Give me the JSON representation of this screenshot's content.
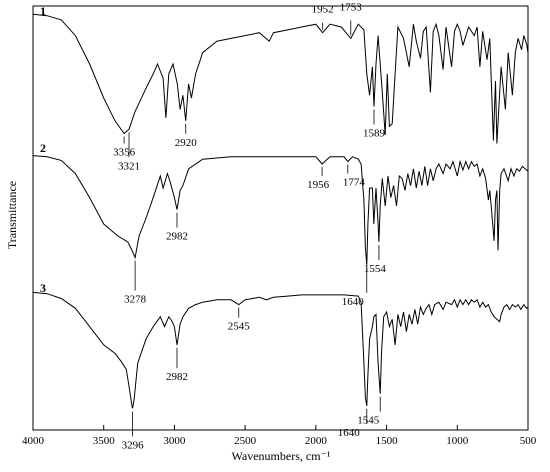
{
  "chart_data": {
    "type": "line",
    "xlabel": "Wavenumbers, cm⁻¹",
    "ylabel": "Transmittance",
    "xlim": [
      4000,
      500
    ],
    "x_reversed": true,
    "x_ticks": [
      4000,
      3500,
      3000,
      2500,
      2000,
      1500,
      1000,
      500
    ],
    "grid": false,
    "legend": "none",
    "line_color": "#000000",
    "series": [
      {
        "name": "1",
        "annotations": [
          3356,
          3321,
          2920,
          1952,
          1753,
          1589
        ],
        "points": [
          [
            4000,
            0.97
          ],
          [
            3900,
            0.96
          ],
          [
            3800,
            0.93
          ],
          [
            3700,
            0.82
          ],
          [
            3600,
            0.62
          ],
          [
            3500,
            0.38
          ],
          [
            3420,
            0.22
          ],
          [
            3356,
            0.13
          ],
          [
            3321,
            0.16
          ],
          [
            3280,
            0.28
          ],
          [
            3200,
            0.45
          ],
          [
            3150,
            0.55
          ],
          [
            3120,
            0.62
          ],
          [
            3080,
            0.52
          ],
          [
            3060,
            0.24
          ],
          [
            3040,
            0.55
          ],
          [
            3010,
            0.62
          ],
          [
            2980,
            0.48
          ],
          [
            2960,
            0.3
          ],
          [
            2940,
            0.4
          ],
          [
            2920,
            0.22
          ],
          [
            2900,
            0.48
          ],
          [
            2880,
            0.38
          ],
          [
            2850,
            0.55
          ],
          [
            2800,
            0.7
          ],
          [
            2700,
            0.78
          ],
          [
            2600,
            0.8
          ],
          [
            2500,
            0.82
          ],
          [
            2400,
            0.84
          ],
          [
            2330,
            0.78
          ],
          [
            2300,
            0.84
          ],
          [
            2200,
            0.86
          ],
          [
            2100,
            0.88
          ],
          [
            2000,
            0.9
          ],
          [
            1952,
            0.84
          ],
          [
            1900,
            0.9
          ],
          [
            1820,
            0.88
          ],
          [
            1753,
            0.8
          ],
          [
            1700,
            0.9
          ],
          [
            1660,
            0.86
          ],
          [
            1640,
            0.55
          ],
          [
            1620,
            0.4
          ],
          [
            1600,
            0.6
          ],
          [
            1589,
            0.32
          ],
          [
            1575,
            0.62
          ],
          [
            1560,
            0.82
          ],
          [
            1530,
            0.42
          ],
          [
            1510,
            0.12
          ],
          [
            1495,
            0.55
          ],
          [
            1480,
            0.18
          ],
          [
            1460,
            0.2
          ],
          [
            1440,
            0.55
          ],
          [
            1420,
            0.88
          ],
          [
            1380,
            0.8
          ],
          [
            1340,
            0.6
          ],
          [
            1310,
            0.9
          ],
          [
            1290,
            0.78
          ],
          [
            1260,
            0.66
          ],
          [
            1240,
            0.85
          ],
          [
            1220,
            0.88
          ],
          [
            1190,
            0.42
          ],
          [
            1170,
            0.85
          ],
          [
            1150,
            0.9
          ],
          [
            1130,
            0.82
          ],
          [
            1100,
            0.58
          ],
          [
            1080,
            0.88
          ],
          [
            1040,
            0.6
          ],
          [
            1020,
            0.85
          ],
          [
            1000,
            0.9
          ],
          [
            980,
            0.85
          ],
          [
            960,
            0.75
          ],
          [
            920,
            0.88
          ],
          [
            880,
            0.82
          ],
          [
            860,
            0.88
          ],
          [
            840,
            0.6
          ],
          [
            820,
            0.85
          ],
          [
            790,
            0.65
          ],
          [
            770,
            0.8
          ],
          [
            745,
            0.08
          ],
          [
            730,
            0.5
          ],
          [
            720,
            0.06
          ],
          [
            700,
            0.42
          ],
          [
            690,
            0.6
          ],
          [
            660,
            0.3
          ],
          [
            640,
            0.7
          ],
          [
            610,
            0.4
          ],
          [
            590,
            0.7
          ],
          [
            570,
            0.8
          ],
          [
            545,
            0.72
          ],
          [
            530,
            0.82
          ],
          [
            510,
            0.76
          ],
          [
            500,
            0.7
          ]
        ]
      },
      {
        "name": "2",
        "annotations": [
          3278,
          2982,
          1956,
          1774,
          1640,
          1554
        ],
        "points": [
          [
            4000,
            0.97
          ],
          [
            3900,
            0.96
          ],
          [
            3800,
            0.93
          ],
          [
            3700,
            0.82
          ],
          [
            3600,
            0.62
          ],
          [
            3500,
            0.4
          ],
          [
            3400,
            0.3
          ],
          [
            3330,
            0.25
          ],
          [
            3300,
            0.18
          ],
          [
            3278,
            0.12
          ],
          [
            3250,
            0.3
          ],
          [
            3200,
            0.45
          ],
          [
            3150,
            0.62
          ],
          [
            3100,
            0.8
          ],
          [
            3080,
            0.7
          ],
          [
            3050,
            0.82
          ],
          [
            3030,
            0.75
          ],
          [
            3000,
            0.62
          ],
          [
            2982,
            0.52
          ],
          [
            2960,
            0.68
          ],
          [
            2940,
            0.72
          ],
          [
            2900,
            0.86
          ],
          [
            2800,
            0.94
          ],
          [
            2600,
            0.96
          ],
          [
            2400,
            0.96
          ],
          [
            2200,
            0.96
          ],
          [
            2000,
            0.96
          ],
          [
            1956,
            0.9
          ],
          [
            1900,
            0.96
          ],
          [
            1800,
            0.96
          ],
          [
            1774,
            0.92
          ],
          [
            1740,
            0.96
          ],
          [
            1700,
            0.94
          ],
          [
            1680,
            0.9
          ],
          [
            1660,
            0.6
          ],
          [
            1650,
            0.2
          ],
          [
            1640,
            0.06
          ],
          [
            1632,
            0.4
          ],
          [
            1620,
            0.7
          ],
          [
            1600,
            0.7
          ],
          [
            1590,
            0.4
          ],
          [
            1575,
            0.7
          ],
          [
            1560,
            0.4
          ],
          [
            1554,
            0.25
          ],
          [
            1545,
            0.55
          ],
          [
            1530,
            0.78
          ],
          [
            1510,
            0.55
          ],
          [
            1490,
            0.8
          ],
          [
            1470,
            0.62
          ],
          [
            1450,
            0.72
          ],
          [
            1430,
            0.55
          ],
          [
            1410,
            0.8
          ],
          [
            1390,
            0.78
          ],
          [
            1370,
            0.68
          ],
          [
            1350,
            0.82
          ],
          [
            1330,
            0.72
          ],
          [
            1310,
            0.86
          ],
          [
            1290,
            0.7
          ],
          [
            1270,
            0.84
          ],
          [
            1250,
            0.72
          ],
          [
            1230,
            0.88
          ],
          [
            1210,
            0.72
          ],
          [
            1190,
            0.86
          ],
          [
            1170,
            0.76
          ],
          [
            1150,
            0.86
          ],
          [
            1130,
            0.9
          ],
          [
            1100,
            0.82
          ],
          [
            1080,
            0.9
          ],
          [
            1050,
            0.86
          ],
          [
            1030,
            0.92
          ],
          [
            1000,
            0.8
          ],
          [
            980,
            0.92
          ],
          [
            960,
            0.85
          ],
          [
            940,
            0.92
          ],
          [
            920,
            0.86
          ],
          [
            900,
            0.92
          ],
          [
            880,
            0.88
          ],
          [
            860,
            0.9
          ],
          [
            840,
            0.8
          ],
          [
            820,
            0.86
          ],
          [
            800,
            0.78
          ],
          [
            780,
            0.6
          ],
          [
            770,
            0.68
          ],
          [
            760,
            0.55
          ],
          [
            740,
            0.26
          ],
          [
            730,
            0.6
          ],
          [
            720,
            0.68
          ],
          [
            712,
            0.18
          ],
          [
            700,
            0.68
          ],
          [
            690,
            0.82
          ],
          [
            670,
            0.86
          ],
          [
            640,
            0.76
          ],
          [
            620,
            0.86
          ],
          [
            600,
            0.8
          ],
          [
            580,
            0.86
          ],
          [
            560,
            0.84
          ],
          [
            540,
            0.88
          ],
          [
            520,
            0.86
          ],
          [
            500,
            0.84
          ]
        ]
      },
      {
        "name": "3",
        "annotations": [
          3296,
          2982,
          2545,
          1640,
          1545
        ],
        "points": [
          [
            4000,
            0.98
          ],
          [
            3900,
            0.97
          ],
          [
            3800,
            0.93
          ],
          [
            3700,
            0.85
          ],
          [
            3600,
            0.7
          ],
          [
            3500,
            0.55
          ],
          [
            3420,
            0.48
          ],
          [
            3380,
            0.42
          ],
          [
            3340,
            0.35
          ],
          [
            3320,
            0.2
          ],
          [
            3300,
            0.05
          ],
          [
            3296,
            0.03
          ],
          [
            3285,
            0.1
          ],
          [
            3260,
            0.4
          ],
          [
            3200,
            0.6
          ],
          [
            3150,
            0.7
          ],
          [
            3100,
            0.78
          ],
          [
            3070,
            0.7
          ],
          [
            3040,
            0.78
          ],
          [
            3020,
            0.75
          ],
          [
            3000,
            0.7
          ],
          [
            2982,
            0.55
          ],
          [
            2960,
            0.72
          ],
          [
            2940,
            0.78
          ],
          [
            2900,
            0.85
          ],
          [
            2850,
            0.88
          ],
          [
            2800,
            0.9
          ],
          [
            2700,
            0.92
          ],
          [
            2600,
            0.92
          ],
          [
            2545,
            0.88
          ],
          [
            2500,
            0.92
          ],
          [
            2400,
            0.94
          ],
          [
            2350,
            0.92
          ],
          [
            2300,
            0.94
          ],
          [
            2200,
            0.95
          ],
          [
            2100,
            0.96
          ],
          [
            2000,
            0.96
          ],
          [
            1900,
            0.96
          ],
          [
            1800,
            0.96
          ],
          [
            1700,
            0.95
          ],
          [
            1680,
            0.9
          ],
          [
            1660,
            0.4
          ],
          [
            1650,
            0.12
          ],
          [
            1640,
            0.05
          ],
          [
            1632,
            0.3
          ],
          [
            1620,
            0.6
          ],
          [
            1600,
            0.7
          ],
          [
            1590,
            0.78
          ],
          [
            1575,
            0.8
          ],
          [
            1560,
            0.4
          ],
          [
            1545,
            0.15
          ],
          [
            1535,
            0.5
          ],
          [
            1520,
            0.78
          ],
          [
            1500,
            0.82
          ],
          [
            1480,
            0.7
          ],
          [
            1460,
            0.76
          ],
          [
            1440,
            0.55
          ],
          [
            1420,
            0.8
          ],
          [
            1400,
            0.7
          ],
          [
            1380,
            0.82
          ],
          [
            1360,
            0.66
          ],
          [
            1340,
            0.8
          ],
          [
            1320,
            0.72
          ],
          [
            1300,
            0.84
          ],
          [
            1280,
            0.72
          ],
          [
            1260,
            0.86
          ],
          [
            1240,
            0.8
          ],
          [
            1220,
            0.85
          ],
          [
            1200,
            0.88
          ],
          [
            1180,
            0.8
          ],
          [
            1160,
            0.88
          ],
          [
            1130,
            0.9
          ],
          [
            1100,
            0.84
          ],
          [
            1080,
            0.9
          ],
          [
            1040,
            0.88
          ],
          [
            1020,
            0.92
          ],
          [
            1000,
            0.86
          ],
          [
            980,
            0.92
          ],
          [
            960,
            0.88
          ],
          [
            940,
            0.92
          ],
          [
            920,
            0.88
          ],
          [
            900,
            0.92
          ],
          [
            880,
            0.9
          ],
          [
            860,
            0.92
          ],
          [
            840,
            0.86
          ],
          [
            820,
            0.9
          ],
          [
            800,
            0.86
          ],
          [
            780,
            0.88
          ],
          [
            760,
            0.82
          ],
          [
            740,
            0.78
          ],
          [
            720,
            0.76
          ],
          [
            700,
            0.74
          ],
          [
            690,
            0.8
          ],
          [
            670,
            0.86
          ],
          [
            650,
            0.88
          ],
          [
            630,
            0.84
          ],
          [
            610,
            0.88
          ],
          [
            590,
            0.86
          ],
          [
            570,
            0.88
          ],
          [
            550,
            0.84
          ],
          [
            530,
            0.88
          ],
          [
            510,
            0.85
          ],
          [
            500,
            0.86
          ]
        ]
      }
    ]
  }
}
